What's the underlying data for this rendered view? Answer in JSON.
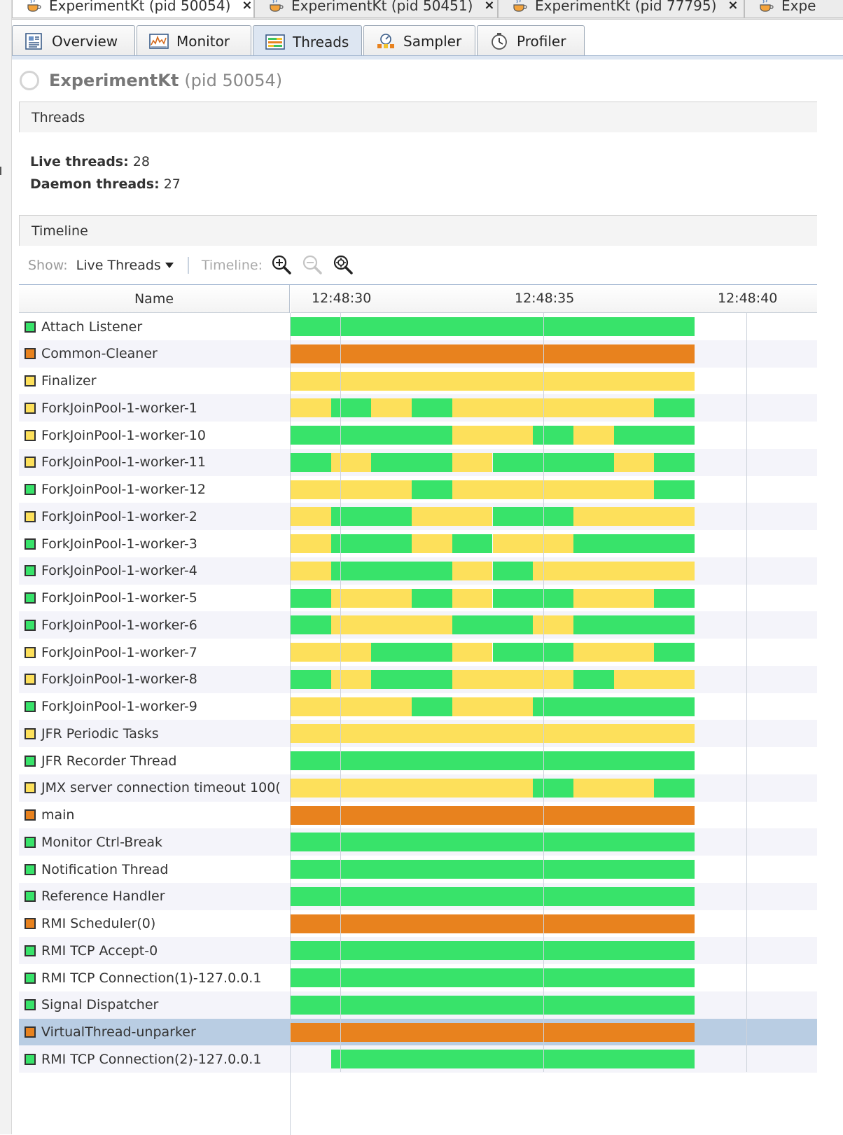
{
  "colors": {
    "running": "#38e36a",
    "sleeping": "#fde05b",
    "wait": "#e8821e",
    "accent": "#9fb4cf"
  },
  "doc_tabs": [
    {
      "label": "ExperimentKt (pid 50054)",
      "close": "×",
      "active": true
    },
    {
      "label": "ExperimentKt (pid 50451)",
      "close": "×",
      "active": false
    },
    {
      "label": "ExperimentKt (pid 77795)",
      "close": "×",
      "active": false
    },
    {
      "label": "Expe",
      "close": "",
      "active": false
    }
  ],
  "view_tabs": [
    {
      "label": "Overview",
      "icon": "overview-icon"
    },
    {
      "label": "Monitor",
      "icon": "monitor-icon"
    },
    {
      "label": "Threads",
      "icon": "threads-icon",
      "active": true
    },
    {
      "label": "Sampler",
      "icon": "sampler-icon"
    },
    {
      "label": "Profiler",
      "icon": "profiler-icon"
    }
  ],
  "process": {
    "name": "ExperimentKt",
    "pid": "(pid 50054)"
  },
  "threads_section": {
    "title": "Threads",
    "live_label": "Live threads:",
    "live_value": "28",
    "daemon_label": "Daemon threads:",
    "daemon_value": "27"
  },
  "timeline_section": {
    "title": "Timeline"
  },
  "toolbar": {
    "show_label": "Show:",
    "show_value": "Live Threads",
    "timeline_label": "Timeline:"
  },
  "table": {
    "name_header": "Name",
    "ticks": [
      "12:48:30",
      "12:48:35",
      "12:48:40"
    ],
    "rows": [
      {
        "name": "Attach Listener",
        "state": "running",
        "segments": [
          [
            0,
            10,
            "running"
          ]
        ]
      },
      {
        "name": "Common-Cleaner",
        "state": "wait",
        "segments": [
          [
            0,
            10,
            "wait"
          ]
        ]
      },
      {
        "name": "Finalizer",
        "state": "sleeping",
        "segments": [
          [
            0,
            10,
            "sleeping"
          ]
        ]
      },
      {
        "name": "ForkJoinPool-1-worker-1",
        "state": "sleeping",
        "segments": [
          [
            0,
            1,
            "sleeping"
          ],
          [
            1,
            2,
            "running"
          ],
          [
            2,
            3,
            "sleeping"
          ],
          [
            3,
            4,
            "running"
          ],
          [
            4,
            9,
            "sleeping"
          ],
          [
            9,
            10,
            "running"
          ]
        ]
      },
      {
        "name": "ForkJoinPool-1-worker-10",
        "state": "sleeping",
        "segments": [
          [
            0,
            4,
            "running"
          ],
          [
            4,
            6,
            "sleeping"
          ],
          [
            6,
            7,
            "running"
          ],
          [
            7,
            8,
            "sleeping"
          ],
          [
            8,
            10,
            "running"
          ]
        ]
      },
      {
        "name": "ForkJoinPool-1-worker-11",
        "state": "sleeping",
        "segments": [
          [
            0,
            1,
            "running"
          ],
          [
            1,
            2,
            "sleeping"
          ],
          [
            2,
            4,
            "running"
          ],
          [
            4,
            5,
            "sleeping"
          ],
          [
            5,
            8,
            "running"
          ],
          [
            8,
            9,
            "sleeping"
          ],
          [
            9,
            10,
            "running"
          ]
        ]
      },
      {
        "name": "ForkJoinPool-1-worker-12",
        "state": "running",
        "segments": [
          [
            0,
            3,
            "sleeping"
          ],
          [
            3,
            4,
            "running"
          ],
          [
            4,
            9,
            "sleeping"
          ],
          [
            9,
            10,
            "running"
          ]
        ]
      },
      {
        "name": "ForkJoinPool-1-worker-2",
        "state": "sleeping",
        "segments": [
          [
            0,
            1,
            "sleeping"
          ],
          [
            1,
            3,
            "running"
          ],
          [
            3,
            5,
            "sleeping"
          ],
          [
            5,
            7,
            "running"
          ],
          [
            7,
            10,
            "sleeping"
          ]
        ]
      },
      {
        "name": "ForkJoinPool-1-worker-3",
        "state": "running",
        "segments": [
          [
            0,
            1,
            "sleeping"
          ],
          [
            1,
            3,
            "running"
          ],
          [
            3,
            4,
            "sleeping"
          ],
          [
            4,
            5,
            "running"
          ],
          [
            5,
            7,
            "sleeping"
          ],
          [
            7,
            10,
            "running"
          ]
        ]
      },
      {
        "name": "ForkJoinPool-1-worker-4",
        "state": "running",
        "segments": [
          [
            0,
            1,
            "sleeping"
          ],
          [
            1,
            4,
            "running"
          ],
          [
            4,
            5,
            "sleeping"
          ],
          [
            5,
            6,
            "running"
          ],
          [
            6,
            10,
            "sleeping"
          ]
        ]
      },
      {
        "name": "ForkJoinPool-1-worker-5",
        "state": "running",
        "segments": [
          [
            0,
            1,
            "running"
          ],
          [
            1,
            3,
            "sleeping"
          ],
          [
            3,
            4,
            "running"
          ],
          [
            4,
            5,
            "sleeping"
          ],
          [
            5,
            7,
            "running"
          ],
          [
            7,
            9,
            "sleeping"
          ],
          [
            9,
            10,
            "running"
          ]
        ]
      },
      {
        "name": "ForkJoinPool-1-worker-6",
        "state": "running",
        "segments": [
          [
            0,
            1,
            "running"
          ],
          [
            1,
            4,
            "sleeping"
          ],
          [
            4,
            6,
            "running"
          ],
          [
            6,
            7,
            "sleeping"
          ],
          [
            7,
            10,
            "running"
          ]
        ]
      },
      {
        "name": "ForkJoinPool-1-worker-7",
        "state": "sleeping",
        "segments": [
          [
            0,
            2,
            "sleeping"
          ],
          [
            2,
            4,
            "running"
          ],
          [
            4,
            5,
            "sleeping"
          ],
          [
            5,
            7,
            "running"
          ],
          [
            7,
            9,
            "sleeping"
          ],
          [
            9,
            10,
            "running"
          ]
        ]
      },
      {
        "name": "ForkJoinPool-1-worker-8",
        "state": "sleeping",
        "segments": [
          [
            0,
            1,
            "running"
          ],
          [
            1,
            2,
            "sleeping"
          ],
          [
            2,
            4,
            "running"
          ],
          [
            4,
            7,
            "sleeping"
          ],
          [
            7,
            8,
            "running"
          ],
          [
            8,
            10,
            "sleeping"
          ]
        ]
      },
      {
        "name": "ForkJoinPool-1-worker-9",
        "state": "running",
        "segments": [
          [
            0,
            3,
            "sleeping"
          ],
          [
            3,
            4,
            "running"
          ],
          [
            4,
            6,
            "sleeping"
          ],
          [
            6,
            10,
            "running"
          ]
        ]
      },
      {
        "name": "JFR Periodic Tasks",
        "state": "sleeping",
        "segments": [
          [
            0,
            10,
            "sleeping"
          ]
        ]
      },
      {
        "name": "JFR Recorder Thread",
        "state": "running",
        "segments": [
          [
            0,
            10,
            "running"
          ]
        ]
      },
      {
        "name": "JMX server connection timeout 100(",
        "state": "sleeping",
        "segments": [
          [
            0,
            6,
            "sleeping"
          ],
          [
            6,
            7,
            "running"
          ],
          [
            7,
            9,
            "sleeping"
          ],
          [
            9,
            10,
            "running"
          ]
        ]
      },
      {
        "name": "main",
        "state": "wait",
        "segments": [
          [
            0,
            10,
            "wait"
          ]
        ]
      },
      {
        "name": "Monitor Ctrl-Break",
        "state": "running",
        "segments": [
          [
            0,
            10,
            "running"
          ]
        ]
      },
      {
        "name": "Notification Thread",
        "state": "running",
        "segments": [
          [
            0,
            10,
            "running"
          ]
        ]
      },
      {
        "name": "Reference Handler",
        "state": "running",
        "segments": [
          [
            0,
            10,
            "running"
          ]
        ]
      },
      {
        "name": "RMI Scheduler(0)",
        "state": "wait",
        "segments": [
          [
            0,
            10,
            "wait"
          ]
        ]
      },
      {
        "name": "RMI TCP Accept-0",
        "state": "running",
        "segments": [
          [
            0,
            10,
            "running"
          ]
        ]
      },
      {
        "name": "RMI TCP Connection(1)-127.0.0.1",
        "state": "running",
        "segments": [
          [
            0,
            10,
            "running"
          ]
        ]
      },
      {
        "name": "Signal Dispatcher",
        "state": "running",
        "segments": [
          [
            0,
            10,
            "running"
          ]
        ]
      },
      {
        "name": "VirtualThread-unparker",
        "state": "wait",
        "selected": true,
        "segments": [
          [
            0,
            10,
            "wait"
          ]
        ]
      },
      {
        "name": "RMI TCP Connection(2)-127.0.0.1",
        "state": "running",
        "segments": [
          [
            1,
            10,
            "running"
          ]
        ]
      }
    ]
  }
}
